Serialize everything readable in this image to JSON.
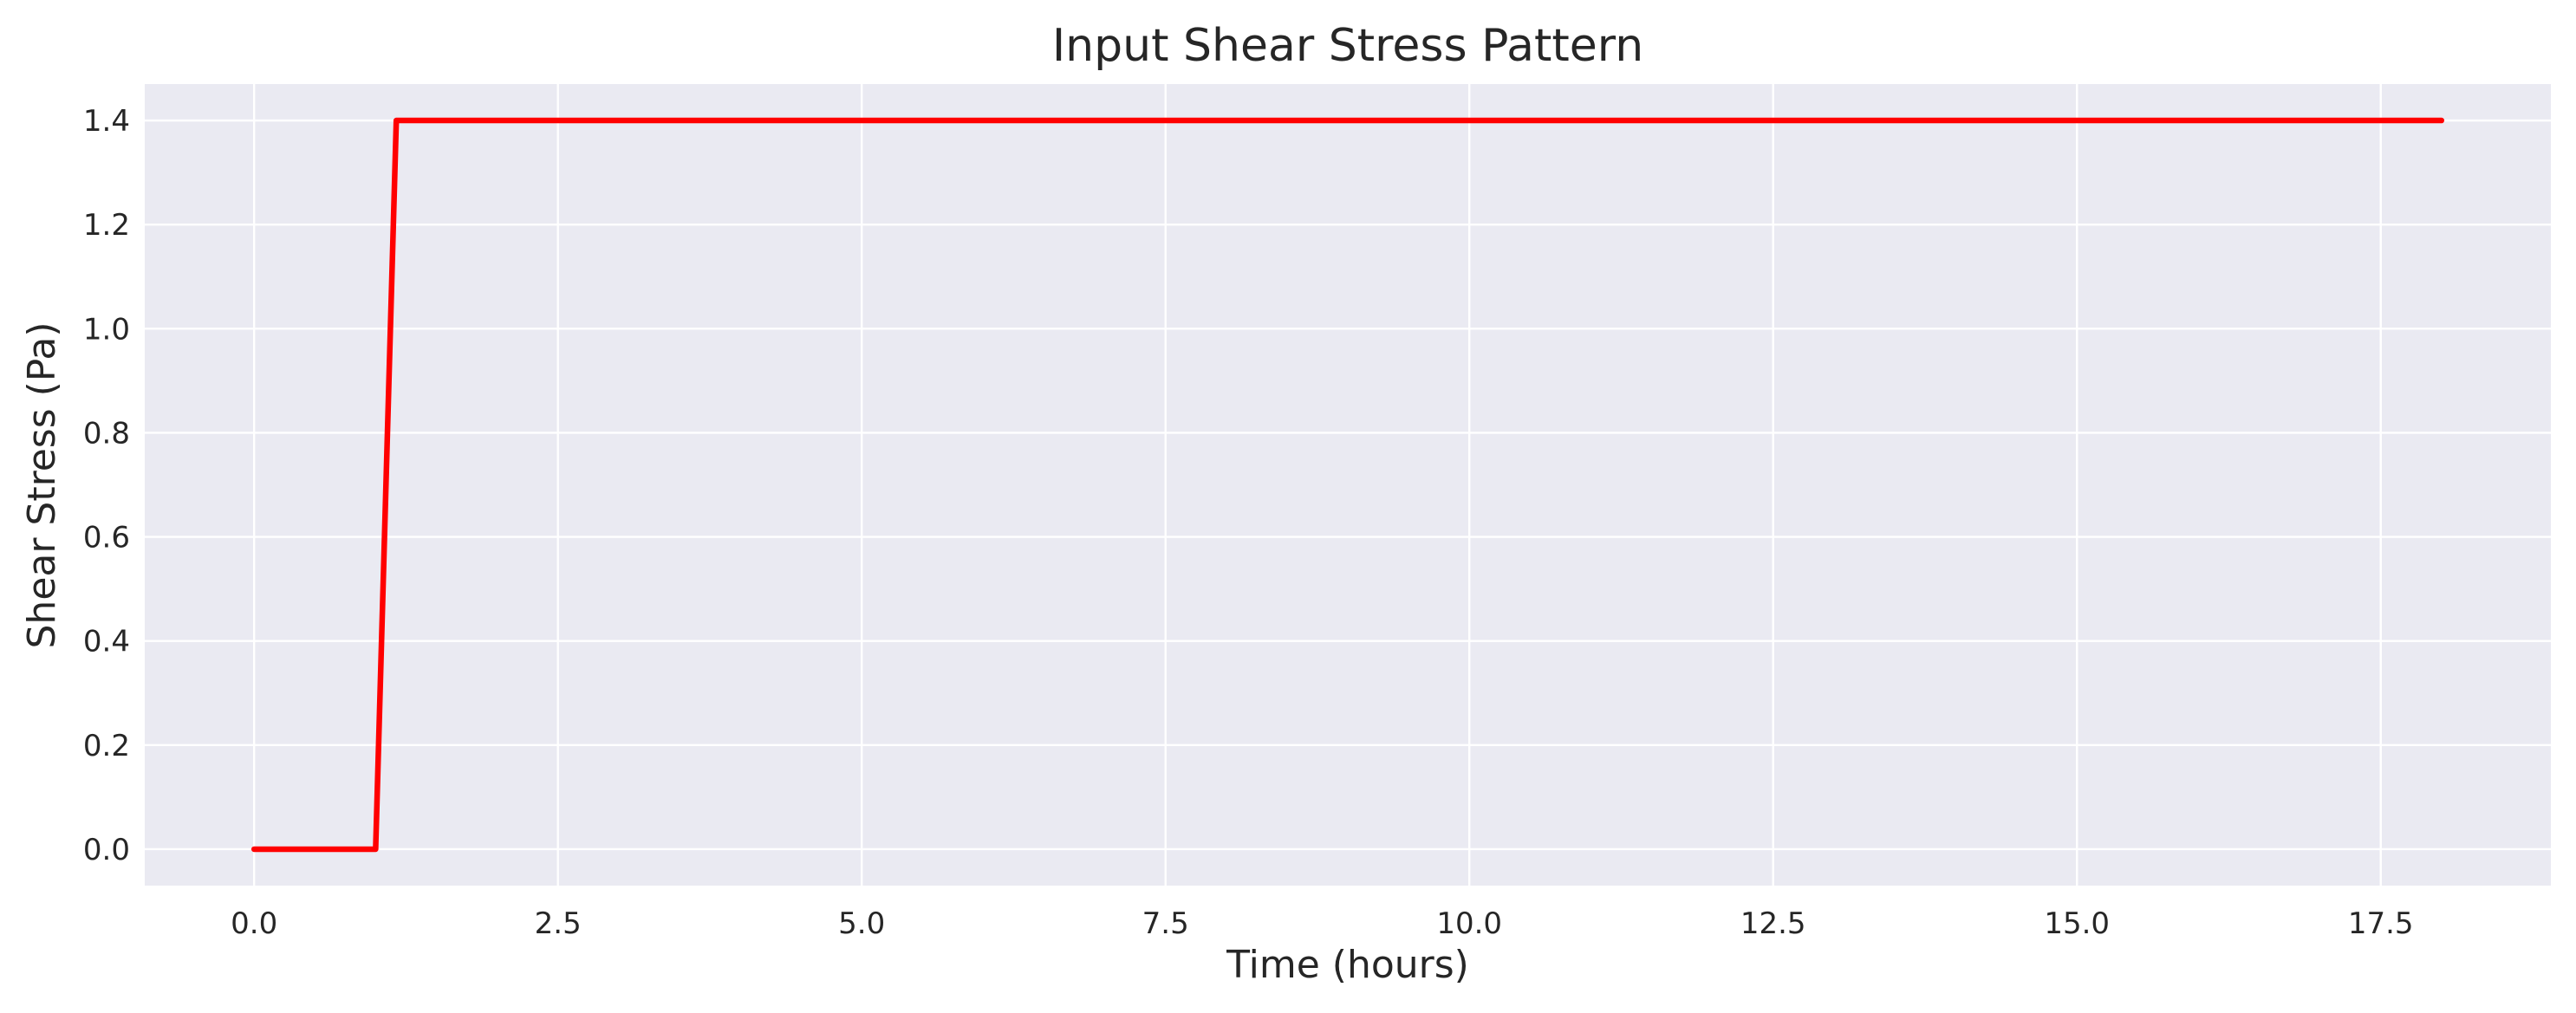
{
  "chart_data": {
    "type": "line",
    "title": "Input Shear Stress Pattern",
    "xlabel": "Time (hours)",
    "ylabel": "Shear Stress (Pa)",
    "xlim": [
      -0.9,
      18.9
    ],
    "ylim": [
      -0.07,
      1.47
    ],
    "xticks": [
      0.0,
      2.5,
      5.0,
      7.5,
      10.0,
      12.5,
      15.0,
      17.5
    ],
    "xtick_labels": [
      "0.0",
      "2.5",
      "5.0",
      "7.5",
      "10.0",
      "12.5",
      "15.0",
      "17.5"
    ],
    "yticks": [
      0.0,
      0.2,
      0.4,
      0.6,
      0.8,
      1.0,
      1.2,
      1.4
    ],
    "ytick_labels": [
      "0.0",
      "0.2",
      "0.4",
      "0.6",
      "0.8",
      "1.0",
      "1.2",
      "1.4"
    ],
    "grid": true,
    "series": [
      {
        "color": "#ff0000",
        "x": [
          0.0,
          1.0,
          1.17,
          18.0
        ],
        "y": [
          0.0,
          0.0,
          1.4,
          1.4
        ]
      }
    ]
  }
}
